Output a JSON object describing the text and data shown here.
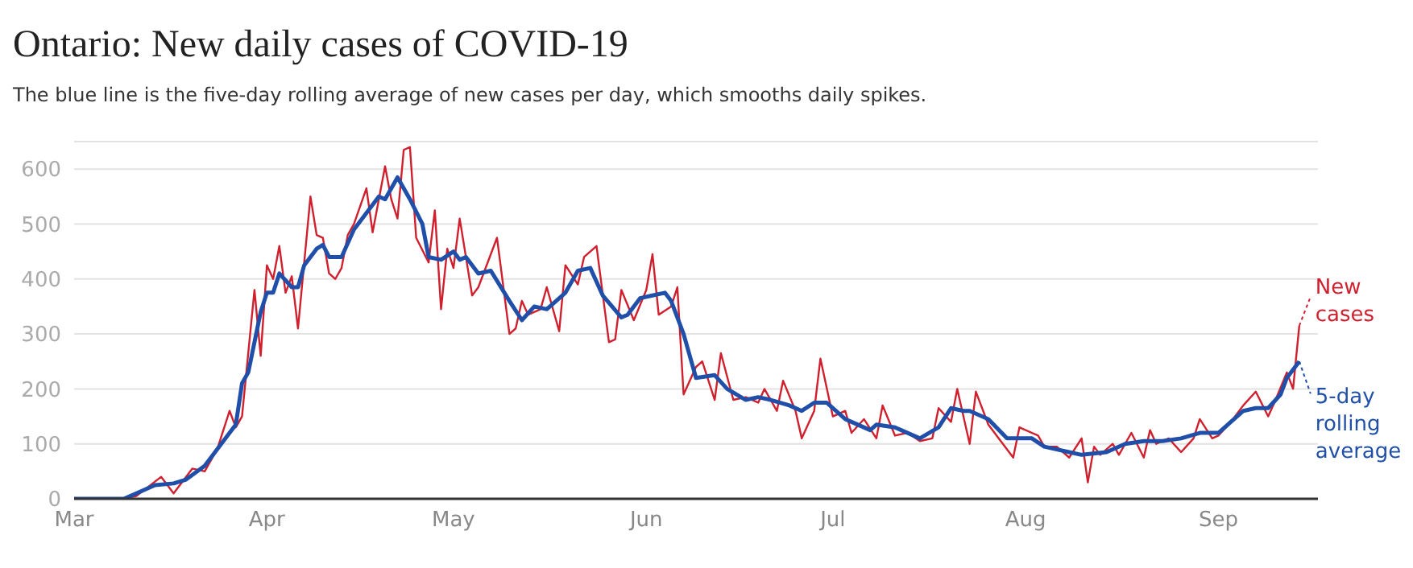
{
  "chart_data": {
    "type": "line",
    "title": "Ontario: New daily cases of COVID-19",
    "subtitle": "The blue line is the five-day rolling average of new cases per day, which smooths daily spikes.",
    "xlim": [
      "--03-01",
      "--09-17"
    ],
    "xticks": [
      {
        "value": "--03-01",
        "label": "Mar"
      },
      {
        "value": "--04-01",
        "label": "Apr"
      },
      {
        "value": "--05-01",
        "label": "May"
      },
      {
        "value": "--06-01",
        "label": "Jun"
      },
      {
        "value": "--07-01",
        "label": "Jul"
      },
      {
        "value": "--08-01",
        "label": "Aug"
      },
      {
        "value": "--09-01",
        "label": "Sep"
      }
    ],
    "ylim": [
      0,
      650
    ],
    "yticks": [
      0,
      100,
      200,
      300,
      400,
      500,
      600
    ],
    "grid": "y",
    "legend": "right",
    "series": [
      {
        "name": "New cases",
        "color": "#d0202e",
        "x": [
          "--03-01",
          "--03-09",
          "--03-11",
          "--03-15",
          "--03-17",
          "--03-20",
          "--03-22",
          "--03-24",
          "--03-26",
          "--03-27",
          "--03-28",
          "--03-30",
          "--03-31",
          "--04-01",
          "--04-02",
          "--04-03",
          "--04-04",
          "--04-05",
          "--04-06",
          "--04-08",
          "--04-09",
          "--04-10",
          "--04-11",
          "--04-12",
          "--04-13",
          "--04-14",
          "--04-15",
          "--04-17",
          "--04-18",
          "--04-20",
          "--04-21",
          "--04-22",
          "--04-23",
          "--04-24",
          "--04-25",
          "--04-27",
          "--04-28",
          "--04-29",
          "--04-30",
          "--05-01",
          "--05-02",
          "--05-04",
          "--05-05",
          "--05-08",
          "--05-10",
          "--05-11",
          "--05-12",
          "--05-13",
          "--05-15",
          "--05-16",
          "--05-18",
          "--05-19",
          "--05-21",
          "--05-22",
          "--05-24",
          "--05-26",
          "--05-27",
          "--05-28",
          "--05-30",
          "--06-01",
          "--06-02",
          "--06-03",
          "--06-05",
          "--06-06",
          "--06-07",
          "--06-09",
          "--06-10",
          "--06-12",
          "--06-13",
          "--06-15",
          "--06-17",
          "--06-19",
          "--06-20",
          "--06-22",
          "--06-23",
          "--06-25",
          "--06-26",
          "--06-28",
          "--06-29",
          "--07-01",
          "--07-03",
          "--07-04",
          "--07-06",
          "--07-08",
          "--07-09",
          "--07-11",
          "--07-13",
          "--07-15",
          "--07-17",
          "--07-18",
          "--07-20",
          "--07-21",
          "--07-23",
          "--07-24",
          "--07-26",
          "--07-28",
          "--07-30",
          "--07-31",
          "--08-03",
          "--08-04",
          "--08-06",
          "--08-08",
          "--08-10",
          "--08-11",
          "--08-12",
          "--08-13",
          "--08-15",
          "--08-16",
          "--08-18",
          "--08-20",
          "--08-21",
          "--08-22",
          "--08-24",
          "--08-26",
          "--08-28",
          "--08-29",
          "--08-31",
          "--09-01",
          "--09-03",
          "--09-05",
          "--09-07",
          "--09-09",
          "--09-10",
          "--09-12",
          "--09-13",
          "--09-14"
        ],
        "values": [
          0,
          0,
          5,
          40,
          10,
          55,
          50,
          90,
          160,
          130,
          150,
          380,
          260,
          425,
          400,
          460,
          375,
          405,
          310,
          550,
          480,
          475,
          410,
          400,
          420,
          480,
          500,
          565,
          485,
          605,
          545,
          510,
          635,
          640,
          475,
          430,
          525,
          345,
          455,
          420,
          510,
          370,
          385,
          475,
          300,
          310,
          360,
          335,
          345,
          385,
          305,
          425,
          390,
          440,
          460,
          285,
          290,
          380,
          325,
          380,
          445,
          335,
          350,
          385,
          190,
          240,
          250,
          180,
          265,
          180,
          185,
          175,
          200,
          160,
          215,
          160,
          110,
          160,
          255,
          150,
          160,
          120,
          145,
          110,
          170,
          115,
          120,
          105,
          110,
          165,
          140,
          200,
          100,
          195,
          135,
          105,
          75,
          130,
          115,
          95,
          95,
          75,
          110,
          30,
          95,
          80,
          100,
          80,
          120,
          75,
          125,
          100,
          110,
          85,
          110,
          145,
          110,
          115,
          140,
          170,
          195,
          150,
          175,
          230,
          200,
          315
        ]
      },
      {
        "name": "5-day rolling average",
        "color": "#1f4fa8",
        "x": [
          "--03-01",
          "--03-09",
          "--03-11",
          "--03-14",
          "--03-17",
          "--03-19",
          "--03-22",
          "--03-24",
          "--03-27",
          "--03-28",
          "--03-29",
          "--03-31",
          "--04-01",
          "--04-02",
          "--04-03",
          "--04-05",
          "--04-06",
          "--04-07",
          "--04-09",
          "--04-10",
          "--04-11",
          "--04-13",
          "--04-15",
          "--04-17",
          "--04-19",
          "--04-20",
          "--04-22",
          "--04-24",
          "--04-26",
          "--04-27",
          "--04-29",
          "--05-01",
          "--05-02",
          "--05-03",
          "--05-04",
          "--05-05",
          "--05-07",
          "--05-10",
          "--05-12",
          "--05-14",
          "--05-16",
          "--05-19",
          "--05-21",
          "--05-23",
          "--05-25",
          "--05-28",
          "--05-29",
          "--05-31",
          "--06-02",
          "--06-04",
          "--06-05",
          "--06-07",
          "--06-09",
          "--06-12",
          "--06-14",
          "--06-17",
          "--06-19",
          "--06-21",
          "--06-24",
          "--06-26",
          "--06-28",
          "--06-30",
          "--07-03",
          "--07-04",
          "--07-07",
          "--07-08",
          "--07-11",
          "--07-15",
          "--07-18",
          "--07-20",
          "--07-22",
          "--07-23",
          "--07-26",
          "--07-29",
          "--08-02",
          "--08-04",
          "--08-08",
          "--08-10",
          "--08-14",
          "--08-17",
          "--08-20",
          "--08-23",
          "--08-26",
          "--08-29",
          "--09-01",
          "--09-05",
          "--09-07",
          "--09-09",
          "--09-11",
          "--09-12",
          "--09-14"
        ],
        "values": [
          0,
          0,
          10,
          25,
          28,
          35,
          60,
          90,
          135,
          210,
          230,
          340,
          375,
          375,
          410,
          385,
          385,
          425,
          455,
          462,
          440,
          440,
          490,
          520,
          550,
          545,
          585,
          545,
          500,
          440,
          435,
          450,
          435,
          440,
          425,
          410,
          415,
          360,
          325,
          350,
          345,
          375,
          415,
          420,
          370,
          330,
          335,
          365,
          370,
          375,
          360,
          300,
          220,
          225,
          200,
          180,
          185,
          180,
          170,
          160,
          175,
          175,
          145,
          140,
          125,
          135,
          130,
          110,
          130,
          165,
          160,
          160,
          145,
          110,
          110,
          95,
          85,
          80,
          85,
          100,
          105,
          105,
          110,
          120,
          120,
          160,
          165,
          165,
          190,
          220,
          250
        ]
      }
    ]
  }
}
